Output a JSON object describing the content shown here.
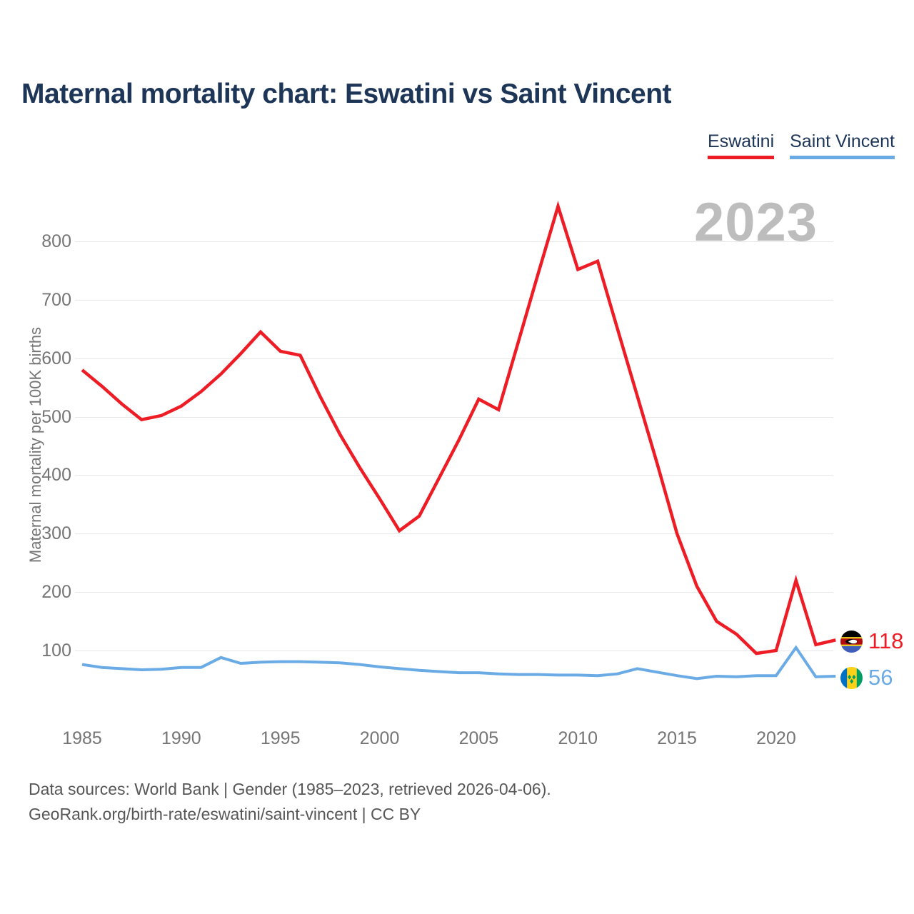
{
  "title": "Maternal mortality chart: Eswatini vs Saint Vincent",
  "watermark_year": "2023",
  "legend": {
    "items": [
      {
        "label": "Eswatini",
        "color": "#ee1c25"
      },
      {
        "label": "Saint Vincent",
        "color": "#6babe5"
      }
    ]
  },
  "colors": {
    "eswatini": "#ee1c25",
    "saint_vincent": "#6babe5",
    "title_navy": "#1d3557",
    "axis_gray": "#757575",
    "grid_gray": "#e8e8e8",
    "watermark_gray": "#bdbdbd"
  },
  "chart_data": {
    "type": "line",
    "title": "Maternal mortality chart: Eswatini vs Saint Vincent",
    "xlabel": "",
    "ylabel": "Maternal mortality per 100K births",
    "x_ticks": [
      1985,
      1990,
      1995,
      2000,
      2005,
      2010,
      2015,
      2020
    ],
    "y_ticks": [
      100,
      200,
      300,
      400,
      500,
      600,
      700,
      800
    ],
    "ylim": [
      40,
      880
    ],
    "xlim": [
      1985,
      2023
    ],
    "grid": "horizontal",
    "legend_position": "top-right",
    "x": [
      1985,
      1986,
      1987,
      1988,
      1989,
      1990,
      1991,
      1992,
      1993,
      1994,
      1995,
      1996,
      1997,
      1998,
      1999,
      2000,
      2001,
      2002,
      2003,
      2004,
      2005,
      2006,
      2007,
      2008,
      2009,
      2010,
      2011,
      2012,
      2013,
      2014,
      2015,
      2016,
      2017,
      2018,
      2019,
      2020,
      2021,
      2022,
      2023
    ],
    "series": [
      {
        "name": "Eswatini",
        "color": "#ee1c25",
        "flag_icon": "eswatini-flag-icon",
        "end_label": "118",
        "values": [
          580,
          552,
          522,
          495,
          502,
          518,
          543,
          573,
          608,
          645,
          612,
          605,
          535,
          470,
          413,
          360,
          305,
          330,
          395,
          460,
          530,
          512,
          628,
          745,
          860,
          752,
          766,
          650,
          535,
          420,
          300,
          210,
          150,
          128,
          95,
          100,
          220,
          110,
          118
        ]
      },
      {
        "name": "Saint Vincent",
        "color": "#6babe5",
        "flag_icon": "saint-vincent-flag-icon",
        "end_label": "56",
        "values": [
          76,
          71,
          69,
          67,
          68,
          71,
          71,
          88,
          78,
          80,
          81,
          81,
          80,
          79,
          76,
          72,
          69,
          66,
          64,
          62,
          62,
          60,
          59,
          59,
          58,
          58,
          57,
          60,
          69,
          63,
          57,
          52,
          56,
          55,
          57,
          57,
          105,
          55,
          56
        ]
      }
    ]
  },
  "footer": {
    "line1": "Data sources: World Bank | Gender (1985–2023, retrieved 2026-04-06).",
    "line2": "GeoRank.org/birth-rate/eswatini/saint-vincent | CC BY"
  }
}
